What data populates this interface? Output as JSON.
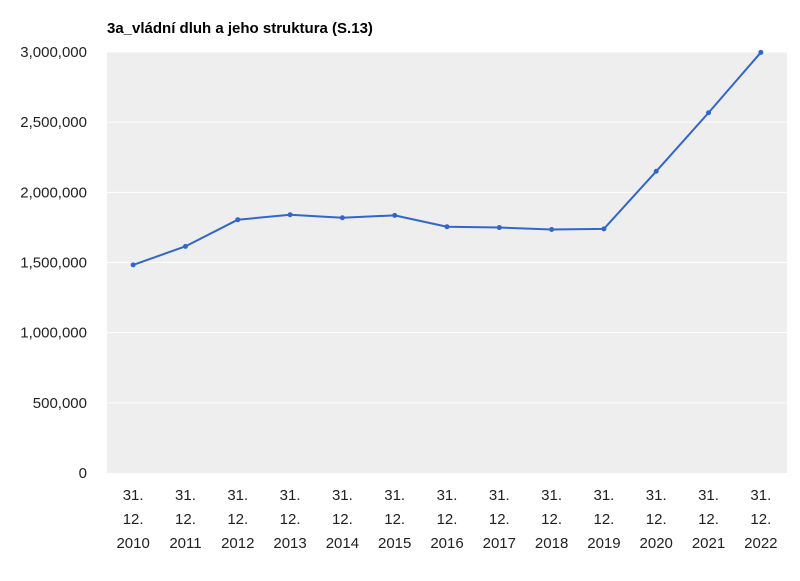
{
  "chart_data": {
    "type": "line",
    "title": "3a_vládní dluh a jeho struktura (S.13)",
    "xlabel": "",
    "ylabel": "",
    "categories": [
      [
        "31.",
        "12.",
        "2010"
      ],
      [
        "31.",
        "12.",
        "2011"
      ],
      [
        "31.",
        "12.",
        "2012"
      ],
      [
        "31.",
        "12.",
        "2013"
      ],
      [
        "31.",
        "12.",
        "2014"
      ],
      [
        "31.",
        "12.",
        "2015"
      ],
      [
        "31.",
        "12.",
        "2016"
      ],
      [
        "31.",
        "12.",
        "2017"
      ],
      [
        "31.",
        "12.",
        "2018"
      ],
      [
        "31.",
        "12.",
        "2019"
      ],
      [
        "31.",
        "12.",
        "2020"
      ],
      [
        "31.",
        "12.",
        "2021"
      ],
      [
        "31.",
        "12.",
        "2022"
      ]
    ],
    "series": [
      {
        "values": [
          1483000,
          1615000,
          1805000,
          1840000,
          1819000,
          1836000,
          1755000,
          1749000,
          1735000,
          1740000,
          2150000,
          2567000,
          2997000
        ],
        "color": "#3366cc"
      }
    ],
    "ylim": [
      0,
      3000000
    ],
    "yticks": [
      0,
      500000,
      1000000,
      1500000,
      2000000,
      2500000,
      3000000
    ],
    "ytick_labels": [
      "0",
      "500,000",
      "1,000,000",
      "1,500,000",
      "2,000,000",
      "2,500,000",
      "3,000,000"
    ],
    "grid": true,
    "legend": "none",
    "plot_background": "#eeeeee",
    "gridline_color": "#ffffff"
  }
}
